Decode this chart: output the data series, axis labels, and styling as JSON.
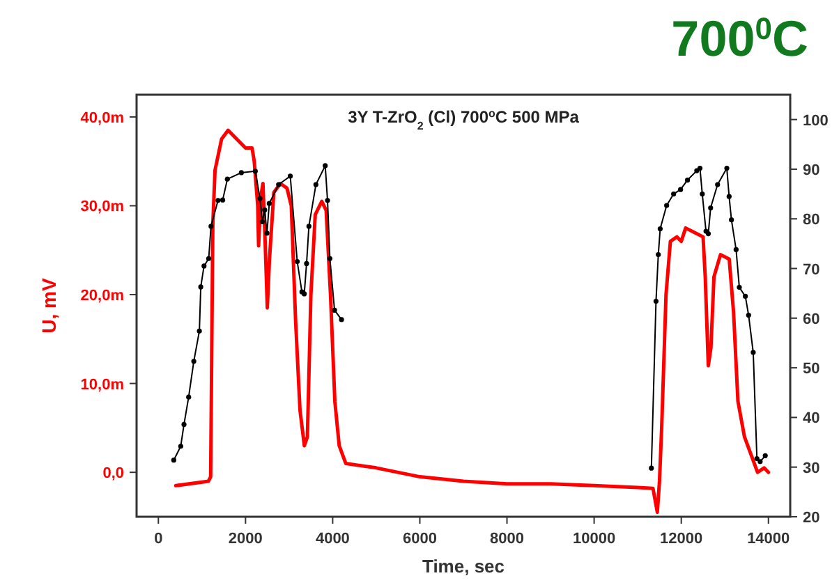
{
  "chart_data": {
    "type": "line",
    "title": "3Y T-ZrO$_{2}$ (Cl) 700$^{o}$C 500 MPa",
    "xlabel": "Time, sec",
    "ylabel": "U, mV",
    "annotations": [
      "700$^{0}$C"
    ],
    "xlim": [
      -500,
      14500
    ],
    "xticks": [
      0,
      2000,
      4000,
      6000,
      8000,
      10000,
      12000,
      14000
    ],
    "ylim": [
      -5,
      42.5
    ],
    "yticks": [
      {
        "value": 0,
        "label": "0,0"
      },
      {
        "value": 10,
        "label": "10,0m"
      },
      {
        "value": 20,
        "label": "20,0m"
      },
      {
        "value": 30,
        "label": "30,0m"
      },
      {
        "value": 40,
        "label": "40,0m"
      }
    ],
    "y2lim": [
      20,
      105
    ],
    "y2ticks": [
      20,
      30,
      40,
      50,
      60,
      70,
      80,
      90,
      100
    ],
    "series": [
      {
        "color": "#ff0000",
        "marker": "none",
        "x": [
          400,
          1150,
          1200,
          1250,
          1300,
          1450,
          1600,
          1800,
          2000,
          2150,
          2200,
          2280,
          2300,
          2350,
          2400,
          2450,
          2500,
          2550,
          2650,
          2800,
          2950,
          3050,
          3150,
          3250,
          3350,
          3420,
          3500,
          3600,
          3750,
          3850,
          3950,
          4050,
          4150,
          4300,
          5000,
          6000,
          7000,
          8000,
          9000,
          10000,
          11000,
          11350,
          11450,
          11500,
          11550,
          11650,
          11750,
          11900,
          12000,
          12100,
          12300,
          12500,
          12550,
          12620,
          12680,
          12750,
          12900,
          13100,
          13200,
          13300,
          13450,
          13600,
          13750,
          13900,
          14000
        ],
        "values": [
          -1.5,
          -1,
          -0.5,
          28,
          34,
          37.5,
          38.5,
          37.5,
          36.5,
          36.5,
          35,
          30,
          25.5,
          31,
          32.5,
          26,
          18.5,
          24,
          31.5,
          32.5,
          32,
          30,
          17,
          7,
          3,
          4,
          20,
          29,
          30.5,
          29.5,
          20,
          8,
          3,
          1,
          0.5,
          -0.5,
          -1,
          -1.3,
          -1.3,
          -1.5,
          -1.7,
          -1.8,
          -4.5,
          -1,
          5,
          20,
          26,
          26.5,
          26,
          27.5,
          27,
          26.5,
          22,
          12,
          14,
          22,
          24.5,
          24,
          18,
          8,
          4,
          2,
          0,
          0.5,
          0
        ]
      },
      {
        "color": "#000000",
        "marker": "circle",
        "axis": "y2",
        "x": [
          353,
          513,
          588,
          695,
          813,
          941,
          973,
          1048,
          1155,
          1208,
          1369,
          1476,
          1583,
          1904,
          2225,
          2332,
          2385,
          2439,
          2492,
          2545,
          2759,
          3027,
          3187,
          3294,
          3348,
          3401,
          3455,
          3615,
          3829,
          3882,
          3936,
          4043,
          4203,
          7000,
          11314,
          11420,
          11473,
          11516,
          11664,
          11824,
          11983,
          12142,
          12355,
          12429,
          12482,
          12567,
          12620,
          12673,
          12833,
          13045,
          13098,
          13151,
          13258,
          13332,
          13470,
          13545,
          13651,
          13736,
          13810,
          13927
        ],
        "values": [
          31.4,
          34.2,
          38.6,
          44.1,
          51.3,
          57.4,
          66.3,
          70.5,
          72,
          78.5,
          83.7,
          83.8,
          88,
          89.3,
          89.6,
          84.1,
          79.4,
          81.8,
          77.1,
          83.1,
          86.9,
          88.6,
          71.4,
          65.3,
          64.9,
          71,
          78.5,
          86.9,
          90.7,
          83.7,
          72,
          61.6,
          59.7,
          null,
          29.8,
          63.4,
          72.8,
          78,
          82.7,
          85,
          85.9,
          87.8,
          89.7,
          90.2,
          85,
          77.5,
          77,
          82.2,
          86.9,
          90.2,
          84.5,
          79.8,
          73.8,
          66.2,
          64.4,
          60.6,
          53.1,
          31.7,
          31.1,
          32.3
        ]
      }
    ]
  }
}
